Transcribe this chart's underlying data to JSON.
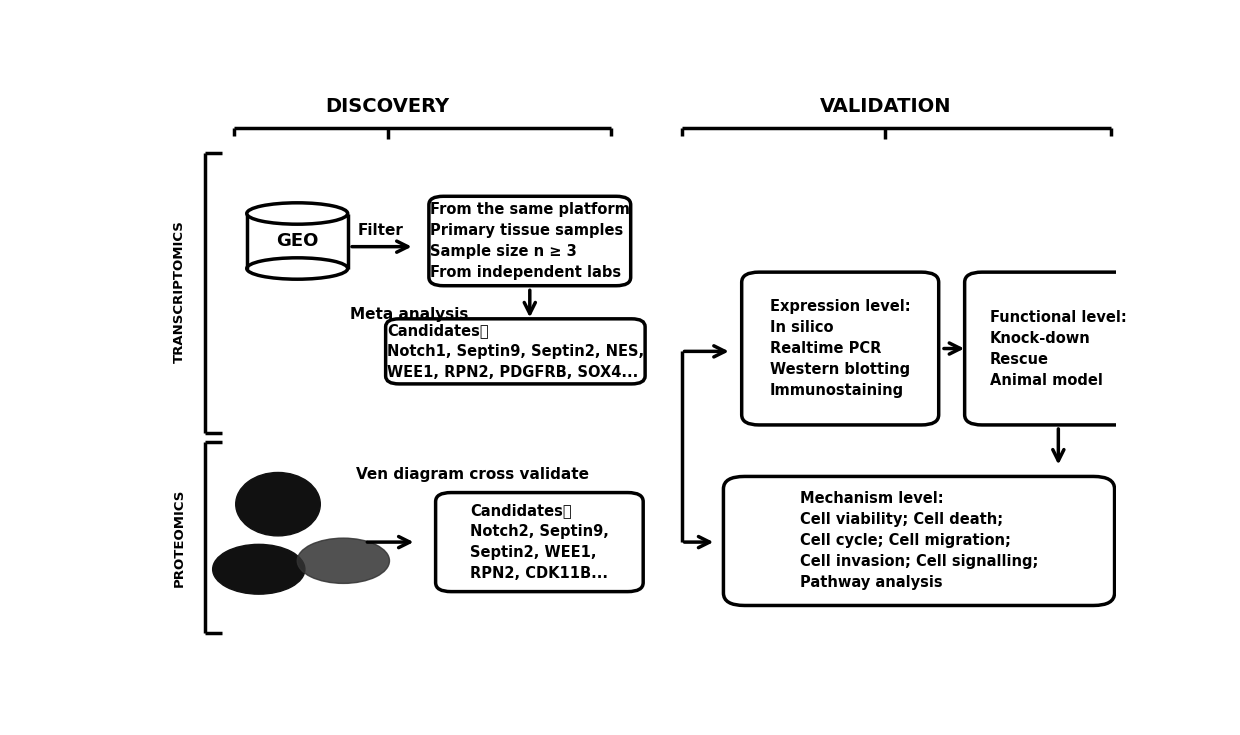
{
  "title_discovery": "DISCOVERY",
  "title_validation": "VALIDATION",
  "label_transcriptomics": "TRANSCRIPTOMICS",
  "label_proteomics": "PROTEOMICS",
  "geo_label": "GEO",
  "filter_label": "Filter",
  "meta_analysis_label": "Meta analysis",
  "ven_label": "Ven diagram cross validate",
  "box_filter_text": "From the same platform\nPrimary tissue samples\nSample size n ≥ 3\nFrom independent labs",
  "box_candidates1_text": "Candidates：\nNotch1, Septin9, Septin2, NES,\nWEE1, RPN2, PDGFRB, SOX4...",
  "box_candidates2_text": "Candidates：\nNotch2, Septin9,\nSeptin2, WEE1,\nRPN2, CDK11B...",
  "box_expression_text": "Expression level:\nIn silico\nRealtime PCR\nWestern blotting\nImmunostaining",
  "box_functional_text": "Functional level:\nKnock-down\nRescue\nAnimal model",
  "box_mechanism_text": "Mechanism level:\nCell viability; Cell death;\nCell cycle; Cell migration;\nCell invasion; Cell signalling;\nPathway analysis",
  "bg_color": "#ffffff",
  "ec": "#000000",
  "tc": "#000000",
  "lw": 2.5,
  "arrow_lw": 2.5
}
